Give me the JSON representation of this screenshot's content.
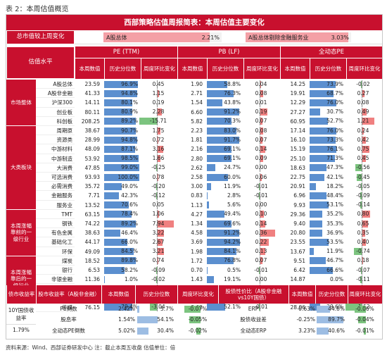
{
  "caption": "表 2：本周估值概览",
  "banner": "西部策略估值周报简表：本周估值主要变化",
  "summary": {
    "label": "总市值较上周变化",
    "items": [
      {
        "name": "A股总体",
        "value": "2.21%",
        "fill": 0.9
      },
      {
        "name": "A股总体剔除金融服务业",
        "value": "3.03%",
        "fill": 0.97
      }
    ]
  },
  "headers": {
    "level": "估值水平",
    "pe": "PE (TTM)",
    "pb": "PB (LF)",
    "roe": "全动态PE",
    "cur": "本周数值",
    "pct": "历史分位数",
    "chg": "周度环比变化"
  },
  "sections": [
    {
      "label": "市场整体",
      "rows": [
        0,
        4
      ]
    },
    {
      "label": "大类板块",
      "rows": [
        5,
        13
      ]
    },
    {
      "label": "本周涨幅靠前的一级行业",
      "rows": [
        14,
        18
      ]
    },
    {
      "label": "本周涨幅靠后的一级行业",
      "rows": [
        19,
        23
      ]
    }
  ],
  "rows": [
    {
      "name": "A股总体",
      "pe": "23.59",
      "pep": "96.9%",
      "pepv": 96.9,
      "pec": "0.45",
      "pecv": 0.45,
      "pb": "1.90",
      "pbp": "58.8%",
      "pbpv": 58.8,
      "pbc": "0.04",
      "pbcv": 0.04,
      "dp": "14.25",
      "dpp": "73.9%",
      "dppv": 73.9,
      "dpc": "-0.02",
      "dpcv": -0.02
    },
    {
      "name": "A股非金融",
      "pe": "41.33",
      "pep": "94.8%",
      "pepv": 94.8,
      "pec": "1.15",
      "pecv": 1.15,
      "pb": "2.71",
      "pbp": "76.3%",
      "pbpv": 76.3,
      "pbc": "0.08",
      "pbcv": 0.08,
      "dp": "19.91",
      "dpp": "68.7%",
      "dppv": 68.7,
      "dpc": "0.27",
      "dpcv": 0.27
    },
    {
      "name": "沪深300",
      "pe": "14.11",
      "pep": "80.1%",
      "pepv": 80.1,
      "pec": "0.19",
      "pecv": 0.19,
      "pb": "1.54",
      "pbp": "43.8%",
      "pbpv": 43.8,
      "pbc": "0.01",
      "pbcv": 0.01,
      "dp": "12.29",
      "dpp": "76.0%",
      "dppv": 76.0,
      "dpc": "0.08",
      "dpcv": 0.08
    },
    {
      "name": "创业板",
      "pe": "80.11",
      "pep": "80.9%",
      "pepv": 80.9,
      "pec": "2.28",
      "pecv": 2.28,
      "pb": "6.60",
      "pbp": "91.2%",
      "pbpv": 91.2,
      "pbc": "0.19",
      "pbcv": 0.19,
      "dp": "27.27",
      "dpp": "30.7%",
      "dppv": 30.7,
      "dpc": "0.49",
      "dpcv": 0.49
    },
    {
      "name": "科创板",
      "pe": "208.25",
      "pep": "89.2%",
      "pepv": 89.2,
      "pec": "-15.71",
      "pecv": -15.71,
      "pb": "5.82",
      "pbp": "70.3%",
      "pbpv": 70.3,
      "pbc": "0.07",
      "pbcv": 0.07,
      "dp": "60.95",
      "dpp": "52.7%",
      "dppv": 52.7,
      "dpc": "1.21",
      "dpcv": 1.21
    },
    {
      "name": "周期原",
      "pe": "38.67",
      "pep": "90.7%",
      "pepv": 90.7,
      "pec": "1.75",
      "pecv": 1.75,
      "pb": "2.23",
      "pbp": "83.0%",
      "pbpv": 83.0,
      "pbc": "0.08",
      "pbcv": 0.08,
      "dp": "17.14",
      "dpp": "76.0%",
      "dppv": 76.0,
      "dpc": "0.24",
      "dpcv": 0.24
    },
    {
      "name": "资源类",
      "pe": "28.99",
      "pep": "94.8%",
      "pepv": 94.8,
      "pec": "0.72",
      "pecv": 0.72,
      "pb": "1.81",
      "pbp": "91.7%",
      "pbpv": 91.7,
      "pbc": "0.07",
      "pbcv": 0.07,
      "dp": "16.10",
      "dpp": "73.3%",
      "dppv": 73.3,
      "dpc": "0.42",
      "dpcv": 0.42
    },
    {
      "name": "中游材料",
      "pe": "48.09",
      "pep": "87.1%",
      "pepv": 87.1,
      "pec": "3.16",
      "pecv": 3.16,
      "pb": "2.16",
      "pbp": "69.1%",
      "pbpv": 69.1,
      "pbc": "0.14",
      "pbcv": 0.14,
      "dp": "15.19",
      "dpp": "76.1%",
      "dppv": 76.1,
      "dpc": "0.75",
      "dpcv": 0.75
    },
    {
      "name": "中游制造",
      "pe": "53.92",
      "pep": "98.5%",
      "pepv": 98.5,
      "pec": "1.66",
      "pecv": 1.66,
      "pb": "2.80",
      "pbp": "69.1%",
      "pbpv": 69.1,
      "pbc": "0.09",
      "pbcv": 0.09,
      "dp": "25.10",
      "dpp": "71.3%",
      "dppv": 71.3,
      "dpc": "0.45",
      "dpcv": 0.45
    },
    {
      "name": "大消费",
      "pe": "47.85",
      "pep": "99.0%",
      "pepv": 99.0,
      "pec": "-0.25",
      "pecv": -0.25,
      "pb": "2.62",
      "pbp": "24.7%",
      "pbpv": 24.7,
      "pbc": "0.00",
      "pbcv": 0.0,
      "dp": "18.63",
      "dpp": "47.3%",
      "dppv": 47.3,
      "dpc": "-0.56",
      "dpcv": -0.56
    },
    {
      "name": "可选消费",
      "pe": "93.93",
      "pep": "100.0%",
      "pepv": 100.0,
      "pec": "0.78",
      "pecv": 0.78,
      "pb": "2.58",
      "pbp": "60.0%",
      "pbpv": 60.0,
      "pbc": "0.06",
      "pbcv": 0.06,
      "dp": "22.75",
      "dpp": "42.1%",
      "dppv": 42.1,
      "dpc": "-0.45",
      "dpcv": -0.45
    },
    {
      "name": "必需消费",
      "pe": "35.72",
      "pep": "49.0%",
      "pepv": 49.0,
      "pec": "-0.20",
      "pecv": -0.2,
      "pb": "3.00",
      "pbp": "11.9%",
      "pbpv": 11.9,
      "pbc": "-0.01",
      "pbcv": -0.01,
      "dp": "20.91",
      "dpp": "18.2%",
      "dppv": 18.2,
      "dpc": "-0.05",
      "dpcv": -0.05
    },
    {
      "name": "金融服务",
      "pe": "7.71",
      "pep": "42.3%",
      "pepv": 42.3,
      "pec": "-0.12",
      "pecv": -0.12,
      "pb": "0.83",
      "pbp": "2.8%",
      "pbpv": 2.8,
      "pbc": "-0.01",
      "pbcv": -0.01,
      "dp": "6.96",
      "dpp": "48.4%",
      "dppv": 48.4,
      "dpc": "-0.09",
      "dpcv": -0.09
    },
    {
      "name": "服务业",
      "pe": "13.52",
      "pep": "70.6%",
      "pepv": 70.6,
      "pec": "0.05",
      "pecv": 0.05,
      "pb": "1.13",
      "pbp": "5.6%",
      "pbpv": 5.6,
      "pbc": "0.00",
      "pbcv": 0.0,
      "dp": "9.93",
      "dpp": "53.1%",
      "dppv": 53.1,
      "dpc": "-0.14",
      "dpcv": -0.14
    },
    {
      "name": "TMT",
      "pe": "63.15",
      "pep": "78.4%",
      "pepv": 78.4,
      "pec": "1.06",
      "pecv": 1.06,
      "pb": "4.27",
      "pbp": "49.4%",
      "pbpv": 49.4,
      "pbc": "0.10",
      "pbcv": 0.1,
      "dp": "29.36",
      "dpp": "35.2%",
      "dppv": 35.2,
      "dpc": "0.80",
      "dpcv": 0.8
    },
    {
      "name": "钢铁",
      "pe": "74.22",
      "pep": "89.2%",
      "pepv": 89.2,
      "pec": "7.94",
      "pecv": 7.94,
      "pb": "1.34",
      "pbp": "69.6%",
      "pbpv": 69.6,
      "pbc": "0.14",
      "pbcv": 0.14,
      "dp": "9.40",
      "dpp": "35.3%",
      "dppv": 35.3,
      "dpc": "0.65",
      "dpcv": 0.65
    },
    {
      "name": "有色金属",
      "pe": "38.63",
      "pep": "46.4%",
      "pepv": 46.4,
      "pec": "3.22",
      "pecv": 3.22,
      "pb": "4.58",
      "pbp": "91.2%",
      "pbpv": 91.2,
      "pbc": "0.36",
      "pbcv": 0.36,
      "dp": "20.80",
      "dpp": "36.9%",
      "dppv": 36.9,
      "dpc": "0.35",
      "dpcv": 0.35
    },
    {
      "name": "基础化工",
      "pe": "44.17",
      "pep": "66.0%",
      "pepv": 66.0,
      "pec": "2.67",
      "pecv": 2.67,
      "pb": "3.69",
      "pbp": "94.2%",
      "pbpv": 94.2,
      "pbc": "0.22",
      "pbcv": 0.22,
      "dp": "23.55",
      "dpp": "53.5%",
      "dppv": 53.5,
      "dpc": "0.40",
      "dpcv": 0.4
    },
    {
      "name": "环保",
      "pe": "49.09",
      "pep": "84.5%",
      "pepv": 84.5,
      "pec": "3.21",
      "pecv": 3.21,
      "pb": "1.98",
      "pbp": "84.1%",
      "pbpv": 84.1,
      "pbc": "0.13",
      "pbcv": 0.13,
      "dp": "13.67",
      "dpp": "11.9%",
      "dppv": 11.9,
      "dpc": "-0.74",
      "dpcv": -0.74
    },
    {
      "name": "煤炭",
      "pe": "18.52",
      "pep": "89.8%",
      "pepv": 89.8,
      "pec": "0.74",
      "pecv": 0.74,
      "pb": "1.72",
      "pbp": "76.8%",
      "pbpv": 76.8,
      "pbc": "0.07",
      "pbcv": 0.07,
      "dp": "9.51",
      "dpp": "46.7%",
      "dppv": 46.7,
      "dpc": "0.18",
      "dpcv": 0.18
    },
    {
      "name": "银行",
      "pe": "6.53",
      "pep": "58.2%",
      "pepv": 58.2,
      "pec": "-0.09",
      "pecv": -0.09,
      "pb": "0.70",
      "pbp": "0.5%",
      "pbpv": 0.5,
      "pbc": "-0.01",
      "pbcv": -0.01,
      "dp": "6.42",
      "dpp": "66.6%",
      "dppv": 66.6,
      "dpc": "-0.07",
      "dpcv": -0.07
    },
    {
      "name": "非银金融",
      "pe": "11.36",
      "pep": "1.0%",
      "pepv": 1.0,
      "pec": "-0.02",
      "pecv": -0.02,
      "pb": "1.43",
      "pbp": "19.1%",
      "pbpv": 19.1,
      "pbc": "0.00",
      "pbcv": 0.0,
      "dp": "14.87",
      "dpp": "0.0%",
      "dppv": 0.0,
      "dpc": "-0.11",
      "dpcv": -0.11
    },
    {
      "name": "食品饮料",
      "pe": "21.29",
      "pep": "17.5%",
      "pepv": 17.5,
      "pec": "-0.29",
      "pecv": -0.29,
      "pb": "4.96",
      "pbp": "26.2%",
      "pbpv": 26.2,
      "pbc": "-0.07",
      "pbcv": -0.07,
      "dp": "18.19",
      "dpp": "17.7%",
      "dppv": 17.7,
      "dpc": "-0.23",
      "dpcv": -0.23
    },
    {
      "name": "商贸零售",
      "pe": "-359.57",
      "pep": "2.6%",
      "pepv": 2.6,
      "pec": "9.23",
      "pecv": 9.23,
      "pb": "1.86",
      "pbp": "12.2%",
      "pbpv": 12.2,
      "pbc": "-0.01",
      "pbcv": -0.01,
      "dp": "23.86",
      "dpp": "53.1%",
      "dppv": 53.1,
      "dpc": "-0.61",
      "dpcv": -0.61
    },
    {
      "name": "传媒",
      "pe": "76.15",
      "pep": "79.4%",
      "pepv": 79.4,
      "pec": "-3.04",
      "pecv": -3.04,
      "pb": "3.02",
      "pbp": "52.1%",
      "pbpv": 52.1,
      "pbc": "-0.01",
      "pbcv": -0.01,
      "dp": "28.06",
      "dpp": "29.6%",
      "dppv": 29.6,
      "dpc": "-1.52",
      "dpcv": -1.52
    }
  ],
  "bottom": {
    "h_left": "债市收益率",
    "h_stock_yield": "股市收益率（A股非金融）",
    "h_cur": "本周数值",
    "h_pct": "历史分位数",
    "h_chg": "周度环比变化",
    "h_risk": "股债性价比（A股非金融vs10Y国债）",
    "left_label": "10Y国债收益率",
    "left_value": "1.79%",
    "rows": [
      {
        "name": "PE倒数",
        "val": "2.42%",
        "pct": "5.7%",
        "pctv": 5.7,
        "chg": "-0.07%",
        "chgv": -0.07,
        "rname": "ERP",
        "rval": "0.63%",
        "rpct": "44.8%",
        "rpctv": 44.8,
        "rchg": "-0.06%",
        "rchgv": -0.06
      },
      {
        "name": "股息率",
        "val": "1.54%",
        "pct": "54.1%",
        "pctv": 54.1,
        "chg": "-0.05%",
        "chgv": -0.05,
        "rname": "股债收益差",
        "rval": "-0.25%",
        "rpct": "89.7%",
        "rpctv": 89.7,
        "rchg": "-0.04%",
        "rchgv": -0.04
      },
      {
        "name": "全动态PE倒数",
        "val": "5.02%",
        "pct": "30.4%",
        "pctv": 30.4,
        "chg": "-0.02%",
        "chgv": -0.02,
        "rname": "全动态ERP",
        "rval": "3.23%",
        "rpct": "40.6%",
        "rpctv": 40.6,
        "rchg": "-0.01%",
        "rchgv": -0.01
      }
    ]
  },
  "footer": "资料来源：Wind、西部证券研发中心  注：截止本周五收盘  估值单位：倍"
}
